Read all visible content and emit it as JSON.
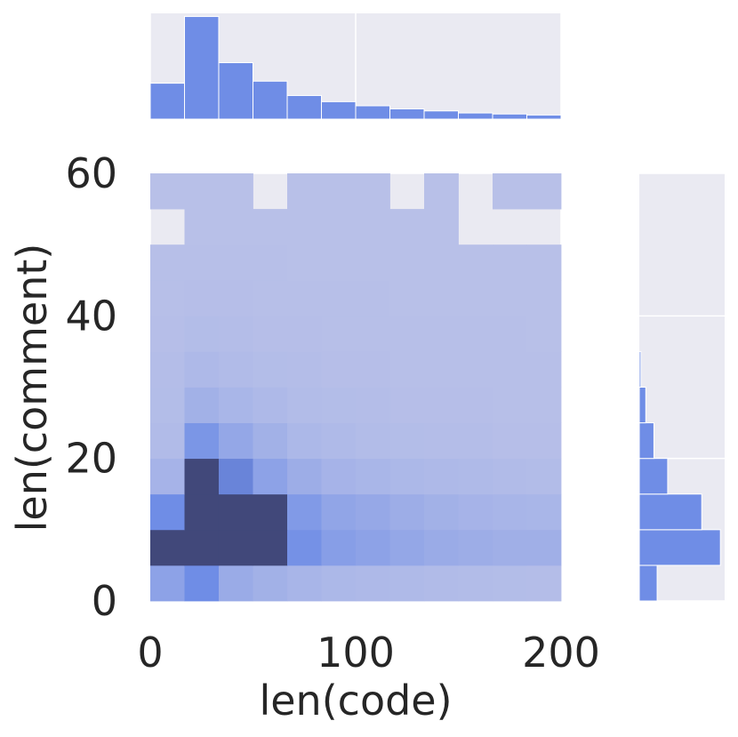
{
  "chart_data": {
    "type": "heatmap",
    "title": "",
    "xlabel": "len(code)",
    "ylabel": "len(comment)",
    "xlim": [
      0,
      200
    ],
    "ylim": [
      0,
      60
    ],
    "x_ticks": [
      "0",
      "100",
      "200"
    ],
    "y_ticks": [
      "0",
      "20",
      "40",
      "60"
    ],
    "grid": true,
    "legend": "none",
    "colors": {
      "background": "#eaeaf2",
      "grid": "#ffffff",
      "bar": "#6f8de6",
      "cell_light": "#b8c0e8",
      "cell_dark": "#41487a",
      "text": "#262626"
    },
    "x_bin_edges": [
      0,
      16.67,
      33.33,
      50,
      66.67,
      83.33,
      100,
      116.67,
      133.33,
      150,
      166.67,
      183.33,
      200
    ],
    "y_bin_edges": [
      0,
      5,
      10,
      15,
      20,
      25,
      30,
      35,
      40,
      45,
      50,
      55,
      60
    ],
    "heatmap_levels": [
      [
        0.35,
        0.6,
        0.25,
        0.18,
        0.13,
        0.1,
        0.08,
        0.07,
        0.06,
        0.05,
        0.04,
        0.03
      ],
      [
        1.0,
        1.0,
        1.0,
        1.0,
        0.55,
        0.4,
        0.35,
        0.3,
        0.25,
        0.22,
        0.2,
        0.2
      ],
      [
        0.6,
        1.0,
        1.0,
        1.0,
        0.45,
        0.32,
        0.28,
        0.22,
        0.18,
        0.15,
        0.13,
        0.12
      ],
      [
        0.15,
        1.0,
        0.65,
        0.35,
        0.22,
        0.15,
        0.12,
        0.1,
        0.08,
        0.07,
        0.06,
        0.05
      ],
      [
        0.06,
        0.5,
        0.3,
        0.18,
        0.1,
        0.07,
        0.05,
        0.04,
        0.03,
        0.03,
        0.02,
        0.02
      ],
      [
        0.04,
        0.18,
        0.12,
        0.08,
        0.05,
        0.04,
        0.03,
        0.02,
        0.02,
        0.02,
        0.01,
        0.01
      ],
      [
        0.03,
        0.08,
        0.06,
        0.04,
        0.03,
        0.02,
        0.02,
        0.01,
        0.01,
        0.01,
        0.01,
        0.01
      ],
      [
        0.02,
        0.04,
        0.03,
        0.02,
        0.02,
        0.01,
        0.01,
        0.01,
        0.01,
        0.01,
        0.01,
        0.0
      ],
      [
        0.01,
        0.02,
        0.02,
        0.01,
        0.01,
        0.01,
        0.01,
        0.0,
        0.0,
        0.0,
        0.0,
        0.0
      ],
      [
        0.01,
        0.01,
        0.01,
        0.01,
        0.0,
        0.0,
        0.0,
        0.0,
        0.0,
        0.0,
        0.0,
        0.0
      ],
      [
        null,
        0.0,
        0.0,
        0.0,
        0.0,
        0.0,
        0.0,
        0.0,
        0.0,
        null,
        null,
        null
      ],
      [
        0.0,
        0.0,
        0.0,
        null,
        0.0,
        0.0,
        0.0,
        null,
        0.0,
        null,
        0.0,
        0.0
      ]
    ],
    "marginal_x_counts": [
      0.35,
      1.0,
      0.55,
      0.37,
      0.23,
      0.17,
      0.13,
      0.1,
      0.08,
      0.06,
      0.05,
      0.04
    ],
    "marginal_y_counts": [
      0.22,
      1.0,
      0.77,
      0.35,
      0.18,
      0.08,
      0.02,
      0.0,
      0.0,
      0.0,
      0.0,
      0.0
    ]
  }
}
